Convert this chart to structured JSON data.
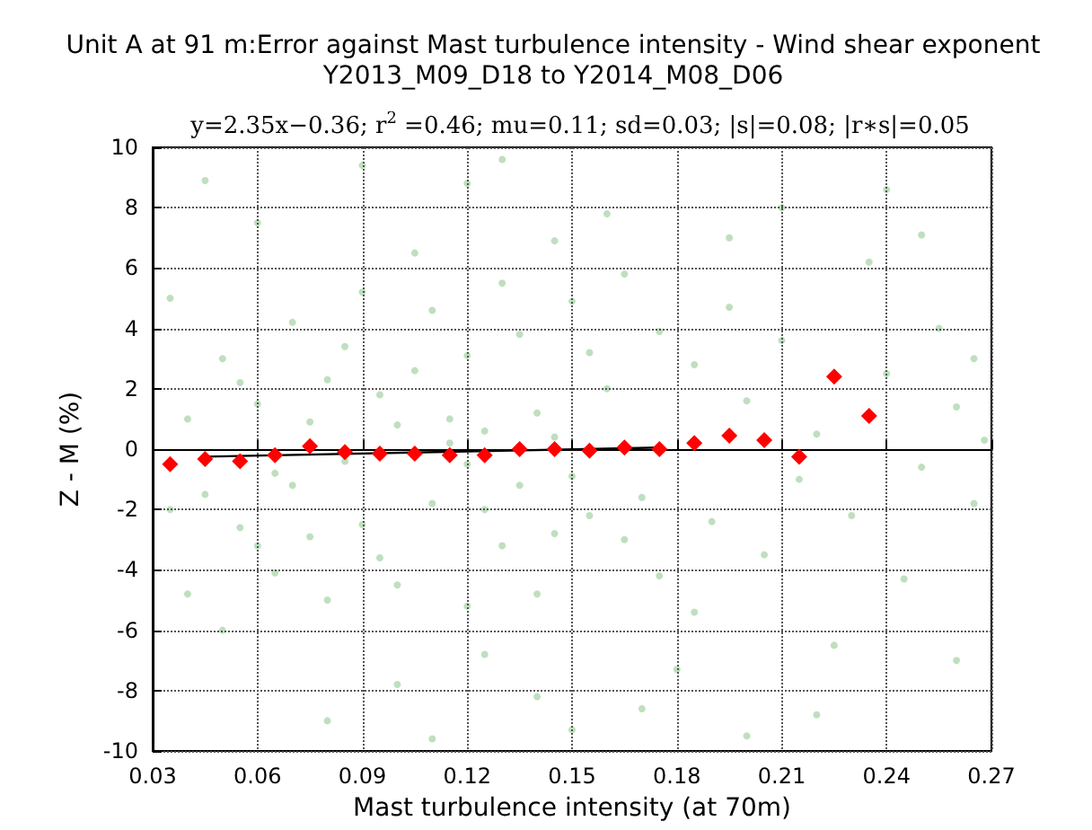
{
  "chart_data": {
    "type": "scatter",
    "title": "Unit A at 91 m:Error against Mast turbulence intensity - Wind shear exponent\nY2013_M09_D18 to Y2014_M08_D06",
    "subtitle": "y=2.35x−0.36; r$^{2}$ =0.46; mu=0.11; sd=0.03; |s|=0.08; |r∗s|=0.05",
    "xlabel": "Mast turbulence intensity (at 70m)",
    "ylabel": "Z - M (%)",
    "xlim": [
      0.03,
      0.27
    ],
    "xticks": [
      0.03,
      0.06,
      0.09,
      0.12,
      0.15,
      0.18,
      0.21,
      0.24,
      0.27
    ],
    "ylim": [
      -10,
      10
    ],
    "yticks": [
      -10,
      -8,
      -6,
      -4,
      -2,
      0,
      2,
      4,
      6,
      8,
      10
    ],
    "grid": true,
    "marker": "circle",
    "series": [
      {
        "color": "#008000",
        "x": [
          0.06,
          0.07,
          0.08,
          0.09,
          0.1,
          0.11,
          0.12,
          0.13,
          0.14,
          0.15,
          0.16,
          0.17,
          0.12,
          0.115,
          0.125,
          0.105,
          0.095,
          0.135,
          0.145,
          0.155,
          0.165,
          0.085,
          0.075,
          0.065,
          0.055,
          0.045,
          0.04,
          0.035,
          0.05,
          0.06,
          0.1,
          0.11,
          0.12,
          0.13,
          0.14,
          0.15,
          0.09,
          0.08,
          0.07,
          0.165,
          0.175,
          0.185,
          0.19,
          0.2,
          0.205,
          0.21,
          0.215,
          0.22,
          0.23,
          0.24,
          0.25,
          0.26,
          0.265,
          0.245,
          0.255,
          0.235,
          0.225,
          0.195,
          0.18,
          0.16,
          0.14,
          0.12,
          0.1,
          0.09,
          0.08,
          0.11,
          0.13,
          0.15,
          0.06,
          0.05,
          0.045,
          0.035,
          0.04,
          0.17,
          0.2,
          0.21,
          0.24,
          0.25,
          0.26,
          0.22,
          0.195,
          0.175,
          0.185,
          0.105,
          0.125,
          0.145,
          0.115,
          0.125,
          0.135,
          0.095,
          0.085,
          0.075,
          0.155,
          0.145,
          0.065,
          0.055,
          0.265,
          0.268
        ],
        "values": [
          1.5,
          -1.2,
          2.3,
          -2.5,
          0.8,
          -1.8,
          3.1,
          -3.2,
          1.2,
          -0.9,
          2.0,
          -1.6,
          -0.5,
          1.0,
          -2.0,
          2.6,
          -3.6,
          3.8,
          -2.8,
          3.2,
          -3.0,
          3.4,
          -2.9,
          -0.8,
          2.2,
          -1.5,
          1.0,
          -2.0,
          3.0,
          -3.2,
          -4.5,
          4.6,
          -5.2,
          5.5,
          -4.8,
          4.9,
          5.2,
          -5.0,
          4.2,
          5.8,
          -4.2,
          2.8,
          -2.4,
          1.6,
          -3.5,
          3.6,
          -1.0,
          0.5,
          -2.2,
          2.5,
          -0.6,
          1.4,
          -1.8,
          -4.3,
          4.0,
          6.2,
          -6.5,
          7.0,
          -7.3,
          7.8,
          -8.2,
          8.8,
          -7.8,
          9.4,
          -9.0,
          -9.6,
          9.6,
          -9.3,
          7.5,
          -6.0,
          8.9,
          5.0,
          -4.8,
          -8.6,
          -9.5,
          8.0,
          8.6,
          7.1,
          -7.0,
          -8.8,
          4.7,
          3.9,
          -5.4,
          6.5,
          -6.8,
          6.9,
          0.2,
          0.6,
          -1.2,
          1.8,
          -0.4,
          0.9,
          -2.2,
          0.4,
          -4.1,
          -2.6,
          3.0,
          0.3
        ]
      },
      {
        "type": "line",
        "color": "#000000",
        "marker": "none",
        "x": [
          0.045,
          0.175
        ],
        "values": [
          -0.25,
          0.05
        ]
      },
      {
        "type": "scatter",
        "color": "#ff0000",
        "marker": "diamond",
        "x": [
          0.035,
          0.045,
          0.055,
          0.065,
          0.075,
          0.085,
          0.095,
          0.105,
          0.115,
          0.125,
          0.135,
          0.145,
          0.155,
          0.165,
          0.175,
          0.185,
          0.195,
          0.205,
          0.215,
          0.225,
          0.235
        ],
        "values": [
          -0.5,
          -0.33,
          -0.4,
          -0.2,
          0.1,
          -0.1,
          -0.15,
          -0.15,
          -0.2,
          -0.2,
          0,
          0,
          -0.05,
          0.05,
          0,
          0.2,
          0.45,
          0.3,
          -0.25,
          2.4,
          1.1
        ]
      }
    ]
  }
}
